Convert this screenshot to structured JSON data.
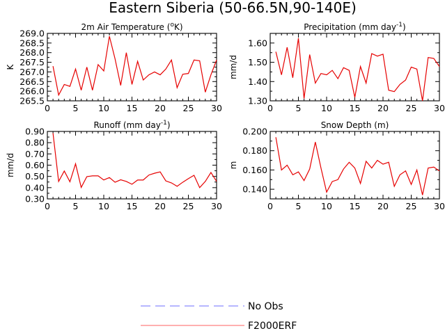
{
  "figure_title": "Eastern Siberia (50-66.5N,90-140E)",
  "colors": {
    "model": "#e60000",
    "obs": "#8a8aff",
    "axis": "#000000"
  },
  "legend": [
    {
      "label": "No Obs",
      "style": "dashed",
      "color": "#8a8aff"
    },
    {
      "label": "F2000ERF",
      "style": "solid",
      "color": "#ff8080"
    }
  ],
  "chart_data": [
    {
      "type": "line",
      "title_main": "2m Air Temperature (",
      "title_deg": "o",
      "title_end": "K)",
      "ylabel": "K",
      "xlim": [
        0,
        30
      ],
      "ylim": [
        265.5,
        269.0
      ],
      "x_ticks": [
        0,
        5,
        10,
        15,
        20,
        25,
        30
      ],
      "x_tick_labels": [
        "0",
        "5",
        "10",
        "15",
        "20",
        "25",
        "30"
      ],
      "y_ticks": [
        265.5,
        266.0,
        266.5,
        267.0,
        267.5,
        268.0,
        268.5,
        269.0
      ],
      "y_tick_labels": [
        "265.5",
        "266.0",
        "266.5",
        "267.0",
        "267.5",
        "268.0",
        "268.5",
        "269.0"
      ],
      "x": [
        1,
        2,
        3,
        4,
        5,
        6,
        7,
        8,
        9,
        10,
        11,
        12,
        13,
        14,
        15,
        16,
        17,
        18,
        19,
        20,
        21,
        22,
        23,
        24,
        25,
        26,
        27,
        28,
        29,
        30
      ],
      "series": [
        {
          "name": "F2000ERF",
          "values": [
            267.3,
            265.8,
            266.35,
            266.25,
            267.15,
            266.05,
            267.25,
            266.05,
            267.38,
            267.05,
            268.85,
            267.68,
            266.3,
            268.0,
            266.35,
            267.55,
            266.58,
            266.85,
            267.0,
            266.85,
            267.15,
            267.62,
            266.18,
            266.88,
            266.92,
            267.62,
            267.58,
            265.95,
            266.85,
            267.62
          ]
        }
      ]
    },
    {
      "type": "line",
      "title_main": "Precipitation (mm day",
      "title_sup": "-1",
      "title_end": ")",
      "ylabel": "mm/d",
      "xlim": [
        0,
        30
      ],
      "ylim": [
        1.3,
        1.65
      ],
      "x_ticks": [
        0,
        5,
        10,
        15,
        20,
        25,
        30
      ],
      "x_tick_labels": [
        "0",
        "5",
        "10",
        "15",
        "20",
        "25",
        "30"
      ],
      "y_ticks": [
        1.3,
        1.4,
        1.5,
        1.6
      ],
      "y_tick_labels": [
        "1.30",
        "1.40",
        "1.50",
        "1.60"
      ],
      "x": [
        1,
        2,
        3,
        4,
        5,
        6,
        7,
        8,
        9,
        10,
        11,
        12,
        13,
        14,
        15,
        16,
        17,
        18,
        19,
        20,
        21,
        22,
        23,
        24,
        25,
        26,
        27,
        28,
        29,
        30
      ],
      "series": [
        {
          "name": "F2000ERF",
          "values": [
            1.555,
            1.435,
            1.578,
            1.42,
            1.625,
            1.312,
            1.54,
            1.392,
            1.442,
            1.435,
            1.458,
            1.415,
            1.472,
            1.458,
            1.318,
            1.478,
            1.392,
            1.545,
            1.532,
            1.542,
            1.355,
            1.348,
            1.385,
            1.408,
            1.475,
            1.465,
            1.3,
            1.525,
            1.52,
            1.478
          ]
        }
      ]
    },
    {
      "type": "line",
      "title_main": "Runoff (mm day",
      "title_sup": "-1",
      "title_end": ")",
      "ylabel": "mm/d",
      "xlim": [
        0,
        30
      ],
      "ylim": [
        0.3,
        0.9
      ],
      "x_ticks": [
        0,
        5,
        10,
        15,
        20,
        25,
        30
      ],
      "x_tick_labels": [
        "0",
        "5",
        "10",
        "15",
        "20",
        "25",
        "30"
      ],
      "y_ticks": [
        0.3,
        0.4,
        0.5,
        0.6,
        0.7,
        0.8,
        0.9
      ],
      "y_tick_labels": [
        "0.30",
        "0.40",
        "0.50",
        "0.60",
        "0.70",
        "0.80",
        "0.90"
      ],
      "x": [
        1,
        2,
        3,
        4,
        5,
        6,
        7,
        8,
        9,
        10,
        11,
        12,
        13,
        14,
        15,
        16,
        17,
        18,
        19,
        20,
        21,
        22,
        23,
        24,
        25,
        26,
        27,
        28,
        29,
        30
      ],
      "series": [
        {
          "name": "F2000ERF",
          "values": [
            0.885,
            0.455,
            0.548,
            0.452,
            0.612,
            0.402,
            0.498,
            0.505,
            0.505,
            0.468,
            0.49,
            0.448,
            0.47,
            0.455,
            0.43,
            0.468,
            0.468,
            0.512,
            0.528,
            0.54,
            0.46,
            0.442,
            0.412,
            0.448,
            0.48,
            0.51,
            0.4,
            0.455,
            0.535,
            0.455
          ]
        }
      ]
    },
    {
      "type": "line",
      "title_main": "Snow Depth (m)",
      "ylabel": "m",
      "xlim": [
        0,
        30
      ],
      "ylim": [
        0.13,
        0.2
      ],
      "x_ticks": [
        0,
        5,
        10,
        15,
        20,
        25,
        30
      ],
      "x_tick_labels": [
        "0",
        "5",
        "10",
        "15",
        "20",
        "25",
        "30"
      ],
      "y_ticks": [
        0.14,
        0.16,
        0.18,
        0.2
      ],
      "y_tick_labels": [
        "0.140",
        "0.160",
        "0.180",
        "0.200"
      ],
      "x": [
        1,
        2,
        3,
        4,
        5,
        6,
        7,
        8,
        9,
        10,
        11,
        12,
        13,
        14,
        15,
        16,
        17,
        18,
        19,
        20,
        21,
        22,
        23,
        24,
        25,
        26,
        27,
        28,
        29,
        30
      ],
      "series": [
        {
          "name": "F2000ERF",
          "values": [
            0.194,
            0.16,
            0.165,
            0.155,
            0.158,
            0.149,
            0.161,
            0.189,
            0.162,
            0.137,
            0.148,
            0.15,
            0.161,
            0.168,
            0.162,
            0.146,
            0.169,
            0.162,
            0.17,
            0.166,
            0.168,
            0.143,
            0.155,
            0.159,
            0.145,
            0.16,
            0.134,
            0.162,
            0.163,
            0.159
          ]
        }
      ]
    }
  ]
}
